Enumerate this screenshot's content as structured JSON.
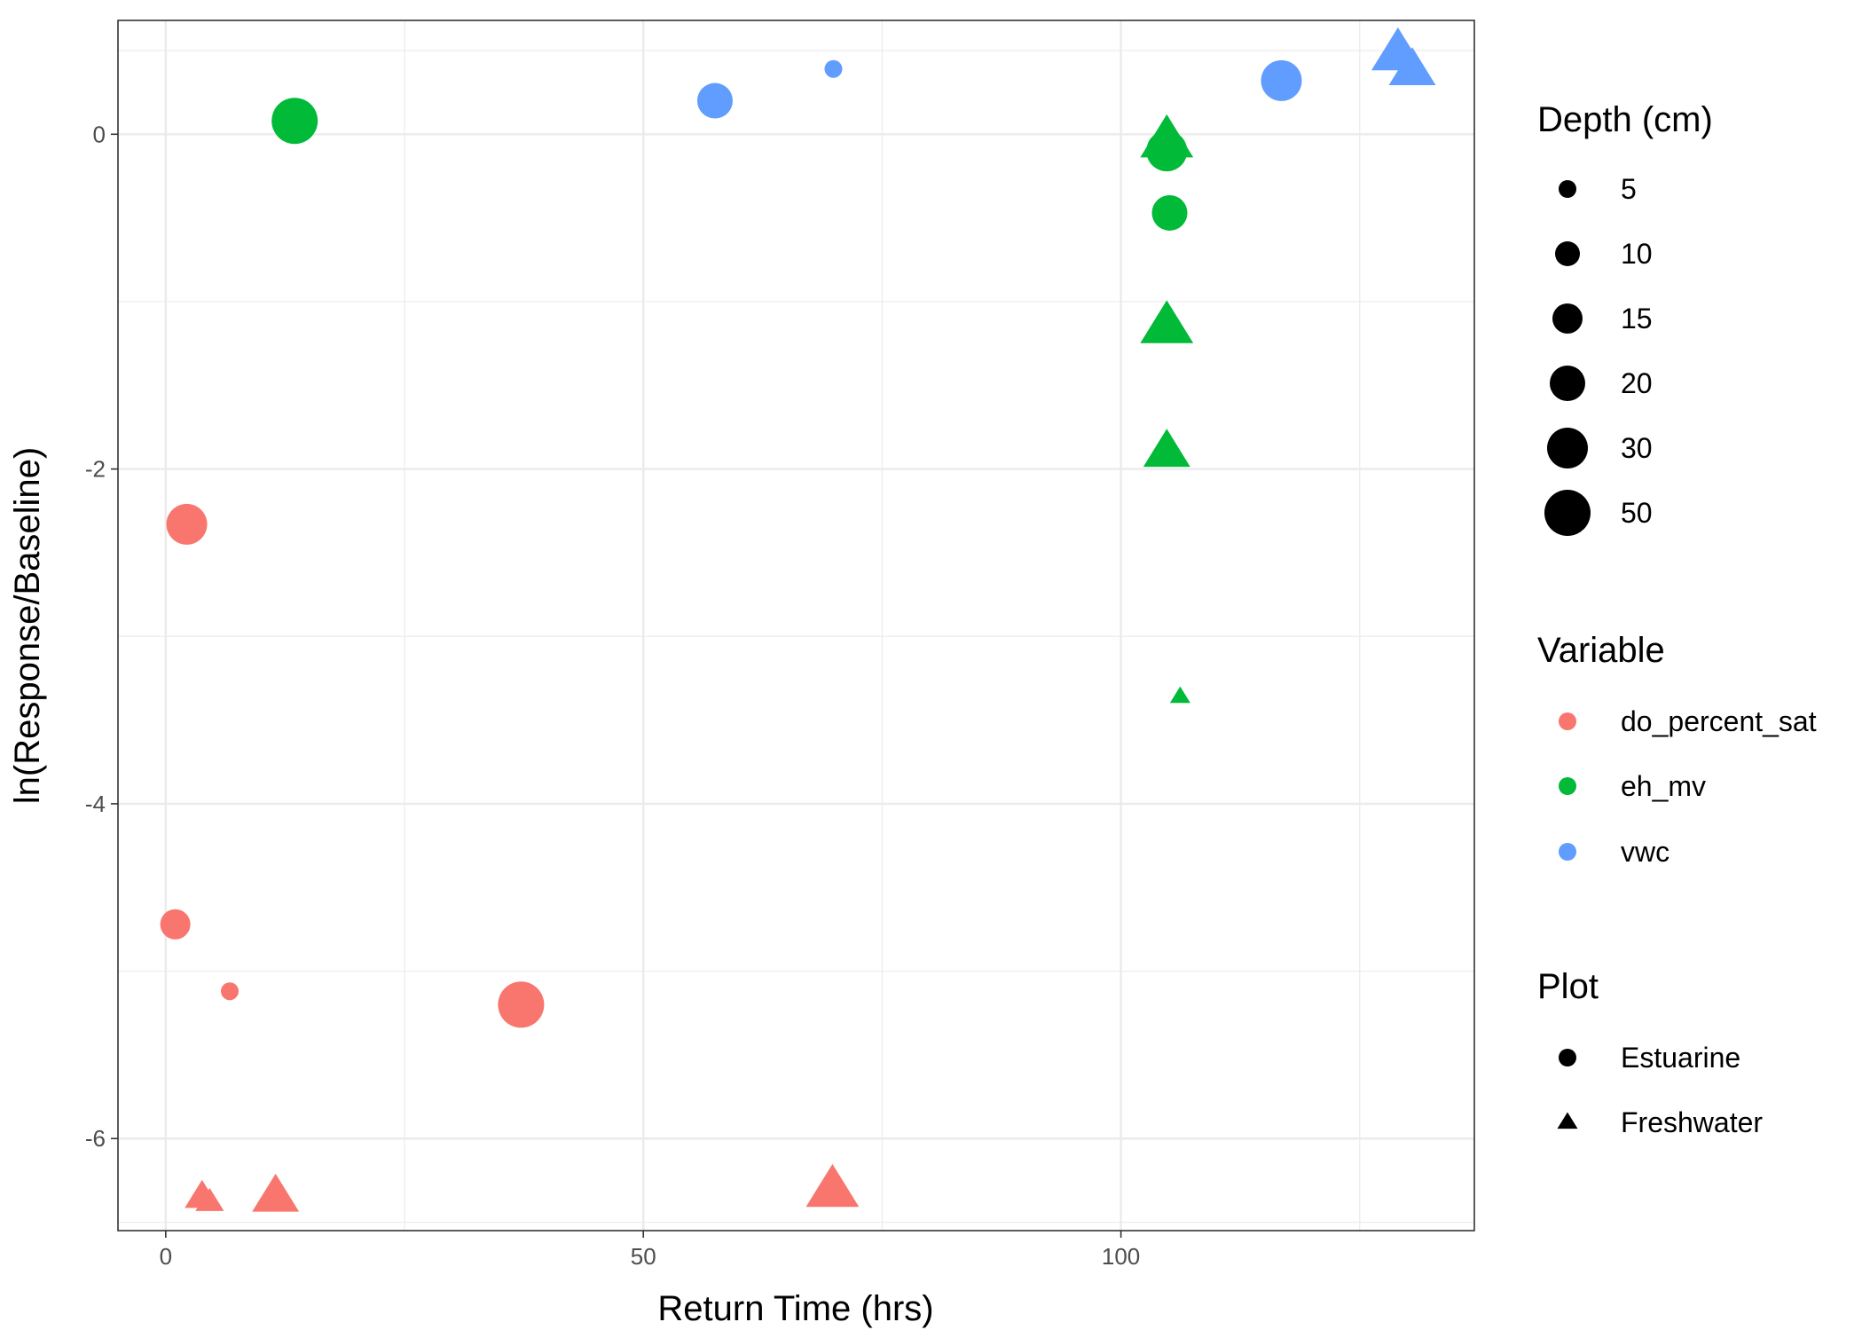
{
  "chart_data": {
    "type": "scatter",
    "xlabel": "Return Time (hrs)",
    "ylabel": "ln(Response/Baseline)",
    "xlim": [
      -5,
      137
    ],
    "ylim": [
      -6.55,
      0.68
    ],
    "xticks": [
      0,
      50,
      100
    ],
    "yticks": [
      0,
      -2,
      -4,
      -6
    ],
    "xtick_labels": [
      "0",
      "50",
      "100"
    ],
    "ytick_labels": [
      "0",
      "-2",
      "-4",
      "-6"
    ],
    "grid": true,
    "colors": {
      "do_percent_sat": "#F8766D",
      "eh_mv": "#00BA38",
      "vwc": "#619CFF"
    },
    "legends": {
      "depth": {
        "title": "Depth (cm)",
        "entries": [
          "5",
          "10",
          "15",
          "20",
          "30",
          "50"
        ]
      },
      "variable": {
        "title": "Variable",
        "entries": [
          "do_percent_sat",
          "eh_mv",
          "vwc"
        ]
      },
      "plot": {
        "title": "Plot",
        "entries": [
          "Estuarine",
          "Freshwater"
        ]
      }
    },
    "points": [
      {
        "x": 2.2,
        "y": -2.33,
        "variable": "do_percent_sat",
        "plot": "Estuarine",
        "depth": 30
      },
      {
        "x": 1.0,
        "y": -4.72,
        "variable": "do_percent_sat",
        "plot": "Estuarine",
        "depth": 15
      },
      {
        "x": 6.7,
        "y": -5.12,
        "variable": "do_percent_sat",
        "plot": "Estuarine",
        "depth": 5
      },
      {
        "x": 37.2,
        "y": -5.2,
        "variable": "do_percent_sat",
        "plot": "Estuarine",
        "depth": 50
      },
      {
        "x": 3.8,
        "y": -6.35,
        "variable": "do_percent_sat",
        "plot": "Freshwater",
        "depth": 15
      },
      {
        "x": 4.6,
        "y": -6.38,
        "variable": "do_percent_sat",
        "plot": "Freshwater",
        "depth": 10
      },
      {
        "x": 11.5,
        "y": -6.35,
        "variable": "do_percent_sat",
        "plot": "Freshwater",
        "depth": 30
      },
      {
        "x": 69.8,
        "y": -6.31,
        "variable": "do_percent_sat",
        "plot": "Freshwater",
        "depth": 50
      },
      {
        "x": 13.5,
        "y": 0.08,
        "variable": "eh_mv",
        "plot": "Estuarine",
        "depth": 50
      },
      {
        "x": 104.8,
        "y": -0.1,
        "variable": "eh_mv",
        "plot": "Estuarine",
        "depth": 30
      },
      {
        "x": 105.1,
        "y": -0.47,
        "variable": "eh_mv",
        "plot": "Estuarine",
        "depth": 20
      },
      {
        "x": 104.8,
        "y": -0.04,
        "variable": "eh_mv",
        "plot": "Freshwater",
        "depth": 50
      },
      {
        "x": 104.8,
        "y": -1.15,
        "variable": "eh_mv",
        "plot": "Freshwater",
        "depth": 50
      },
      {
        "x": 104.8,
        "y": -1.9,
        "variable": "eh_mv",
        "plot": "Freshwater",
        "depth": 30
      },
      {
        "x": 106.2,
        "y": -3.36,
        "variable": "eh_mv",
        "plot": "Freshwater",
        "depth": 5
      },
      {
        "x": 57.5,
        "y": 0.2,
        "variable": "vwc",
        "plot": "Estuarine",
        "depth": 20
      },
      {
        "x": 69.9,
        "y": 0.39,
        "variable": "vwc",
        "plot": "Estuarine",
        "depth": 5
      },
      {
        "x": 116.8,
        "y": 0.32,
        "variable": "vwc",
        "plot": "Estuarine",
        "depth": 30
      },
      {
        "x": 129.0,
        "y": 0.48,
        "variable": "vwc",
        "plot": "Freshwater",
        "depth": 50
      },
      {
        "x": 130.5,
        "y": 0.38,
        "variable": "vwc",
        "plot": "Freshwater",
        "depth": 30
      }
    ]
  }
}
